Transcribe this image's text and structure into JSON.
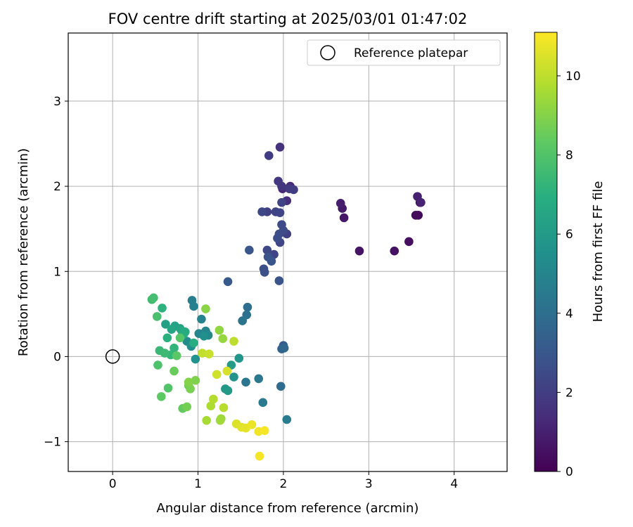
{
  "chart_data": {
    "type": "scatter",
    "title": "FOV centre drift starting at 2025/03/01 01:47:02",
    "xlabel": "Angular distance from reference (arcmin)",
    "ylabel": "Rotation from reference (arcmin)",
    "xlim": [
      -0.52,
      4.62
    ],
    "ylim": [
      -1.35,
      3.8
    ],
    "xticks": [
      "0",
      "1",
      "2",
      "3",
      "4"
    ],
    "yticks": [
      "−1",
      "0",
      "1",
      "2",
      "3"
    ],
    "grid": true,
    "legend": {
      "position": "top-right",
      "label": "Reference platepar"
    },
    "reference_point": {
      "x": 0,
      "y": 0,
      "marker": "open-circle"
    },
    "colorbar": {
      "label": "Hours from first FF file",
      "range": [
        0,
        11.1
      ],
      "ticks": [
        "0",
        "2",
        "4",
        "6",
        "8",
        "10"
      ],
      "colormap": "viridis",
      "colors": [
        "#440154",
        "#472d7b",
        "#3b528b",
        "#2c728e",
        "#21918c",
        "#28ae80",
        "#5ec962",
        "#addc30",
        "#fde725"
      ]
    },
    "series": [
      {
        "hours": [
          0.1,
          0.2,
          0.3,
          0.4,
          0.5,
          0.6,
          0.7,
          0.8,
          0.9,
          1.0,
          1.1,
          1.2,
          1.3,
          1.4,
          1.6,
          1.7,
          1.8,
          1.9,
          2.0,
          2.0,
          2.1,
          2.1,
          2.2,
          2.2,
          2.3,
          2.3,
          2.3,
          2.4,
          2.4,
          2.5,
          2.5,
          2.6,
          2.6,
          2.7,
          2.7,
          2.8,
          2.8,
          2.9,
          3.0,
          3.1,
          3.2,
          3.5,
          3.7,
          3.9,
          4.0,
          4.1,
          4.2,
          4.3,
          4.4,
          4.5,
          4.6,
          4.7,
          4.8,
          4.9,
          5.0,
          5.1,
          5.2,
          5.3,
          5.4,
          5.5,
          5.6,
          5.7,
          5.8,
          5.9,
          6.0,
          6.1,
          6.2,
          6.3,
          6.4,
          6.5,
          6.6,
          6.7,
          6.8,
          6.9,
          7.0,
          7.1,
          7.2,
          7.3,
          7.4,
          7.5,
          7.6,
          7.7,
          7.8,
          7.9,
          8.0,
          8.1,
          8.2,
          8.3,
          8.4,
          8.5,
          8.6,
          8.7,
          8.8,
          8.9,
          9.0,
          9.1,
          9.2,
          9.3,
          9.4,
          9.5,
          9.6,
          9.7,
          9.8,
          9.9,
          10.0,
          10.1,
          10.2,
          10.3,
          10.4,
          10.5,
          10.6,
          10.7,
          10.8,
          10.9,
          11.0,
          11.0
        ],
        "x": [
          3.6,
          3.58,
          3.55,
          3.47,
          3.3,
          2.89,
          2.71,
          2.69,
          2.67,
          3.57,
          3.61,
          1.99,
          2.08,
          2.04,
          1.96,
          1.98,
          1.94,
          2.07,
          2.12,
          1.83,
          2.04,
          1.81,
          1.91,
          1.98,
          1.96,
          1.96,
          1.89,
          1.75,
          1.81,
          1.98,
          2.0,
          1.93,
          1.95,
          1.77,
          1.78,
          1.95,
          1.82,
          1.86,
          1.6,
          1.35,
          2.0,
          1.98,
          2.01,
          1.97,
          1.58,
          1.57,
          1.52,
          1.56,
          1.71,
          1.76,
          2.04,
          0.93,
          0.95,
          1.04,
          1.09,
          1.01,
          1.12,
          0.87,
          0.92,
          1.07,
          0.97,
          1.42,
          1.48,
          1.32,
          1.35,
          1.39,
          0.62,
          0.73,
          0.79,
          0.69,
          0.81,
          0.85,
          0.83,
          0.95,
          0.64,
          0.58,
          0.72,
          0.68,
          0.55,
          0.61,
          0.46,
          0.48,
          0.52,
          0.53,
          0.65,
          0.79,
          0.75,
          0.57,
          0.82,
          0.72,
          0.89,
          0.87,
          0.91,
          0.97,
          0.89,
          1.09,
          1.25,
          1.29,
          1.27,
          1.26,
          1.1,
          1.15,
          1.18,
          1.3,
          1.42,
          1.05,
          1.13,
          1.22,
          1.34,
          1.45,
          1.51,
          1.56,
          1.63,
          1.71,
          1.78,
          1.72
        ],
        "y": [
          1.81,
          1.66,
          1.66,
          1.35,
          1.24,
          1.24,
          1.63,
          1.74,
          1.8,
          1.88,
          1.81,
          1.97,
          2.0,
          1.83,
          2.46,
          2.0,
          2.06,
          1.97,
          1.96,
          2.36,
          1.44,
          1.7,
          1.7,
          1.81,
          1.69,
          1.34,
          1.2,
          1.7,
          1.25,
          1.55,
          1.48,
          1.39,
          1.44,
          1.03,
          0.99,
          0.89,
          1.17,
          1.12,
          1.25,
          0.88,
          0.13,
          0.09,
          0.1,
          -0.35,
          0.58,
          0.49,
          0.42,
          -0.3,
          -0.26,
          -0.54,
          -0.74,
          0.66,
          0.59,
          0.44,
          0.3,
          0.27,
          0.25,
          0.18,
          0.12,
          0.24,
          -0.03,
          -0.24,
          -0.02,
          -0.38,
          -0.4,
          -0.1,
          0.38,
          0.36,
          0.33,
          0.32,
          0.3,
          0.29,
          0.26,
          0.16,
          0.22,
          0.57,
          0.1,
          0.02,
          0.07,
          0.04,
          0.67,
          0.69,
          0.47,
          -0.1,
          -0.37,
          0.22,
          0.01,
          -0.47,
          -0.61,
          -0.17,
          -0.34,
          -0.59,
          -0.38,
          -0.28,
          -0.3,
          0.56,
          0.31,
          0.21,
          -0.73,
          -0.75,
          -0.75,
          -0.58,
          -0.5,
          -0.6,
          0.18,
          0.04,
          0.03,
          -0.21,
          -0.17,
          -0.79,
          -0.83,
          -0.84,
          -0.8,
          -0.88,
          -0.87,
          -1.17
        ]
      }
    ]
  }
}
